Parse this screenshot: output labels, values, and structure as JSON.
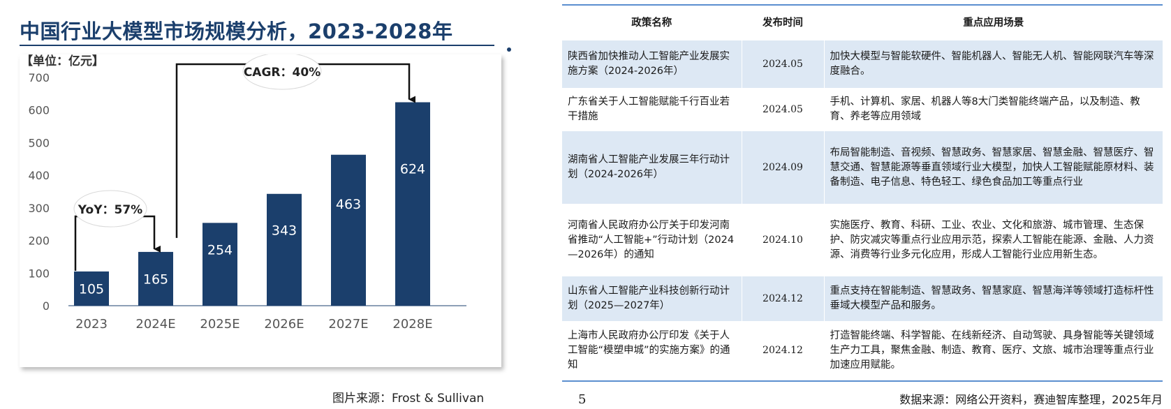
{
  "chart_data": {
    "type": "bar",
    "title": "中国行业大模型市场规模分析，2023-2028年",
    "unit_label": "【单位：亿元】",
    "categories": [
      "2023",
      "2024E",
      "2025E",
      "2026E",
      "2027E",
      "2028E"
    ],
    "values": [
      105,
      165,
      254,
      343,
      463,
      624
    ],
    "value_labels": [
      "105",
      "165",
      "254",
      "343",
      "463",
      "624"
    ],
    "y_ticks": [
      "0",
      "100",
      "200",
      "300",
      "400",
      "500",
      "600",
      "700"
    ],
    "ylim": [
      0,
      700
    ],
    "grid": false,
    "bar_color": "#1b3f6c",
    "annotations": [
      {
        "text": "YoY：57%",
        "from_category": "2023",
        "to_category": "2024E"
      },
      {
        "text": "CAGR：40%",
        "from_category": "2024E",
        "to_category": "2028E"
      }
    ],
    "source": "图片来源：Frost & Sullivan"
  },
  "table": {
    "headers": {
      "name": "政策名称",
      "date": "发布时间",
      "scene": "重点应用场景"
    },
    "rows": [
      {
        "name": "陕西省加快推动人工智能产业发展实施方案（2024-2026年）",
        "date": "2024.05",
        "scene": "加快大模型与智能软硬件、智能机器人、智能无人机、智能网联汽车等深度融合。"
      },
      {
        "name": "广东省关于人工智能赋能千行百业若干措施",
        "date": "2024.05",
        "scene": "手机、计算机、家居、机器人等8大门类智能终端产品，以及制造、教育、养老等应用领域"
      },
      {
        "name": "湖南省人工智能产业发展三年行动计划（2024-2026年）",
        "date": "2024.09",
        "scene": "布局智能制造、音视频、智慧政务、智慧家居、智慧金融、智慧医疗、智慧交通、智慧能源等垂直领域行业大模型，加快人工智能赋能原材料、装备制造、电子信息、特色轻工、绿色食品加工等重点行业"
      },
      {
        "name": "河南省人民政府办公厅关于印发河南省推动“人工智能+”行动计划（2024—2026年）的通知",
        "date": "2024.10",
        "scene": "实施医疗、教育、科研、工业、农业、文化和旅游、城市管理、生态保护、防灾减灾等重点行业应用示范，探索人工智能在能源、金融、人力资源、消费等行业多元化应用，形成人工智能行业应用新生态。"
      },
      {
        "name": "山东省人工智能产业科技创新行动计划（2025—2027年）",
        "date": "2024.12",
        "scene": "重点支持在智能制造、智慧政务、智慧家庭、智慧海洋等领域打造标杆性垂域大模型产品和服务。"
      },
      {
        "name": "上海市人民政府办公厅印发《关于人工智能“模塑申城”的实施方案》的通知",
        "date": "2024.12",
        "scene": "打造智能终端、科学智能、在线新经济、自动驾驶、具身智能等关键领域生产力工具，聚焦金融、制造、教育、医疗、文旅、城市治理等重点行业加速应用赋能。"
      }
    ]
  },
  "page_number": "5",
  "table_source": "数据来源：网络公开资料，赛迪智库整理，2025年月"
}
